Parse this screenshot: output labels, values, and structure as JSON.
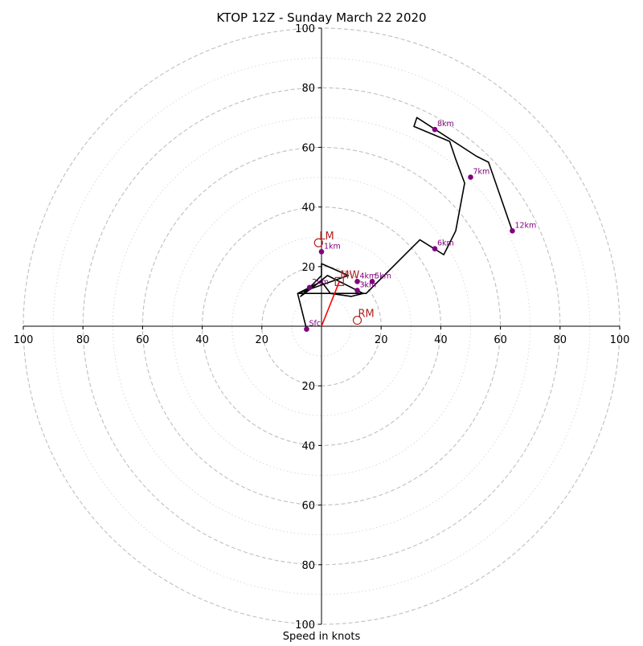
{
  "chart_data": {
    "type": "hodograph",
    "title": "KTOP 12Z - Sunday March 22 2020",
    "xlabel": "Speed in knots",
    "radial_range": [
      0,
      100
    ],
    "ring_step": 10,
    "major_ring_step": 20,
    "tick_labels": [
      "100",
      "80",
      "60",
      "40",
      "20",
      "20",
      "40",
      "60",
      "80",
      "100"
    ],
    "hodograph_trace": [
      [
        -5,
        -1
      ],
      [
        -8,
        11
      ],
      [
        0,
        15
      ],
      [
        3,
        11
      ],
      [
        10,
        10
      ],
      [
        14,
        11
      ],
      [
        2,
        17
      ],
      [
        -3,
        13
      ],
      [
        -7,
        10
      ],
      [
        0,
        17
      ],
      [
        0,
        21
      ],
      [
        9,
        17
      ],
      [
        -8,
        11
      ],
      [
        15,
        11
      ],
      [
        33,
        29
      ],
      [
        41,
        24
      ],
      [
        45,
        32
      ],
      [
        48,
        48
      ],
      [
        45,
        56
      ],
      [
        43,
        62
      ],
      [
        31,
        67
      ],
      [
        32,
        70
      ],
      [
        52,
        57
      ],
      [
        56,
        55
      ],
      [
        64,
        32
      ]
    ],
    "height_markers": [
      {
        "label": "Sfc",
        "u": -5,
        "v": -1
      },
      {
        "label": "1km",
        "u": 0,
        "v": 25
      },
      {
        "label": "2km",
        "u": -4,
        "v": 13
      },
      {
        "label": "3km",
        "u": 12,
        "v": 12
      },
      {
        "label": "4km",
        "u": 12,
        "v": 15
      },
      {
        "label": "5km",
        "u": 17,
        "v": 15
      },
      {
        "label": "6km",
        "u": 38,
        "v": 26
      },
      {
        "label": "7km",
        "u": 50,
        "v": 50
      },
      {
        "label": "8km",
        "u": 38,
        "v": 66
      },
      {
        "label": "12km",
        "u": 64,
        "v": 32
      }
    ],
    "storm_motion": [
      {
        "label": "LM",
        "u": -1,
        "v": 28,
        "marker": "circle"
      },
      {
        "label": "RM",
        "u": 12,
        "v": 2,
        "marker": "circle"
      },
      {
        "label": "MW",
        "u": 6,
        "v": 15,
        "marker": "square"
      }
    ],
    "colors": {
      "trace": "#000000",
      "markers": "#800080",
      "storm": "#b22222",
      "shear_vector": "#ff0000",
      "grid": "#bfbfbf"
    }
  }
}
